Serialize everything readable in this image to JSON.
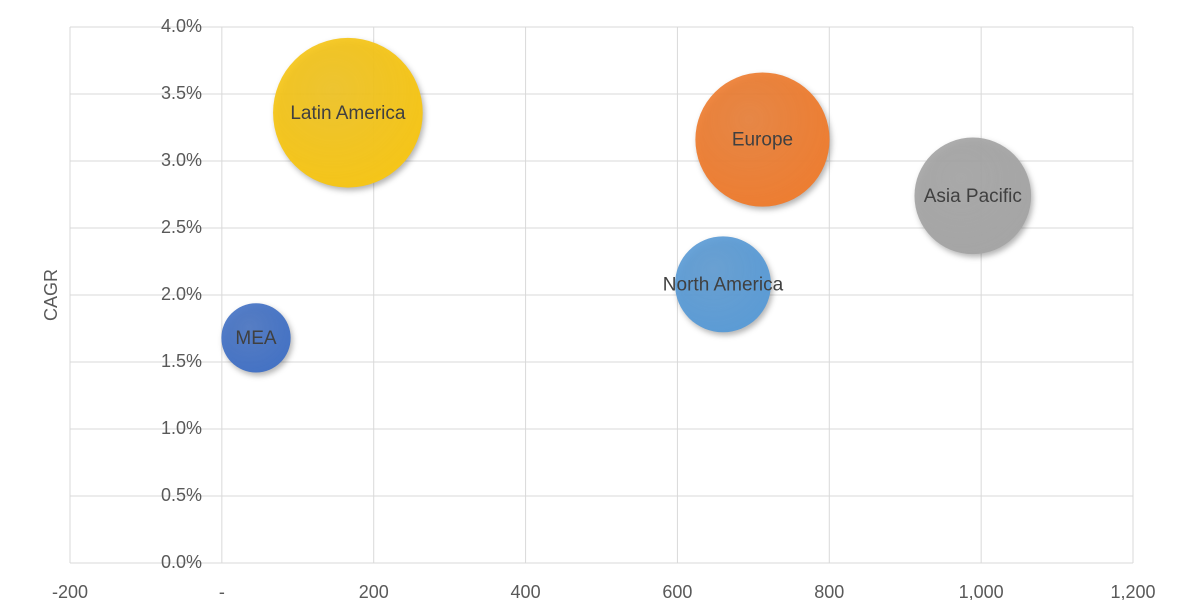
{
  "chart_data": {
    "type": "bubble",
    "y_label": "CAGR",
    "xlim": [
      -200,
      1200
    ],
    "xticks": [
      -200,
      {
        "value": 0,
        "label": "-"
      },
      200,
      400,
      600,
      800,
      {
        "value": 1000,
        "label": "1,000"
      },
      {
        "value": 1200,
        "label": "1,200"
      }
    ],
    "ylim": [
      0,
      4
    ],
    "yticks": [
      {
        "value": 0,
        "label": "0.0%"
      },
      {
        "value": 0.5,
        "label": "0.5%"
      },
      {
        "value": 1,
        "label": "1.0%"
      },
      {
        "value": 1.5,
        "label": "1.5%"
      },
      {
        "value": 2,
        "label": "2.0%"
      },
      {
        "value": 2.5,
        "label": "2.5%"
      },
      {
        "value": 3,
        "label": "3.0%"
      },
      {
        "value": 3.5,
        "label": "3.5%"
      },
      {
        "value": 4,
        "label": "4.0%"
      }
    ],
    "grid": true,
    "series": [
      {
        "name": "Latin America",
        "color": "#f5c518",
        "x": 166,
        "y": 3.36,
        "size": 56
      },
      {
        "name": "Europe",
        "color": "#ed7d31",
        "x": 712,
        "y": 3.16,
        "size": 45
      },
      {
        "name": "Asia Pacific",
        "color": "#a5a5a5",
        "x": 989,
        "y": 2.74,
        "size": 34
      },
      {
        "name": "North America",
        "color": "#5b9bd5",
        "x": 660,
        "y": 2.08,
        "size": 23
      },
      {
        "name": "MEA",
        "color": "#4472c4",
        "x": 45,
        "y": 1.68,
        "size": 12
      }
    ]
  }
}
